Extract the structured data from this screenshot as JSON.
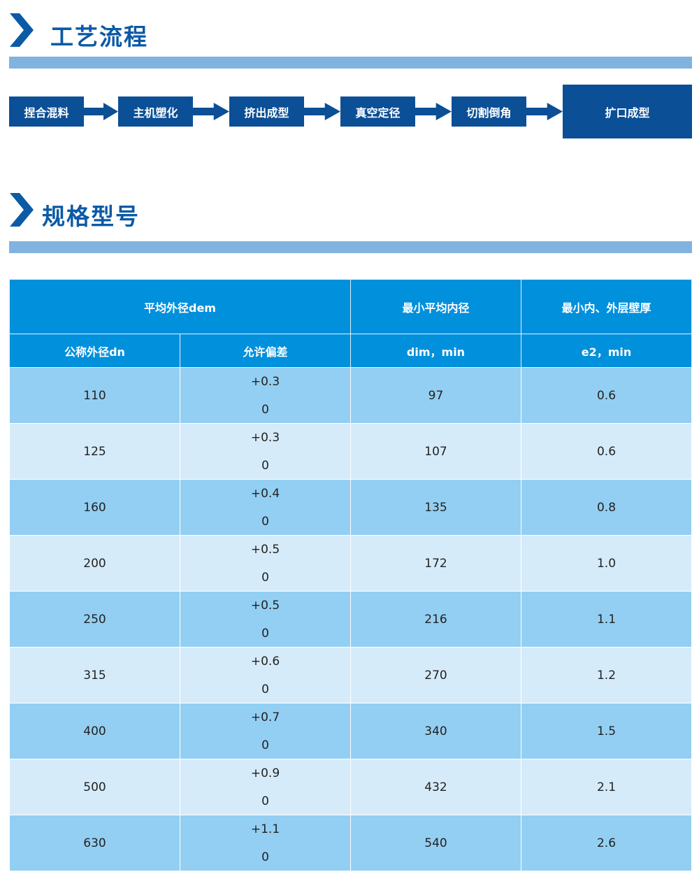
{
  "section1": {
    "title": "工艺流程",
    "steps": [
      "捏合混料",
      "主机塑化",
      "挤出成型",
      "真空定径",
      "切割倒角",
      "扩口成型"
    ]
  },
  "section2": {
    "title": "规格型号"
  },
  "colors": {
    "primary": "#0b4f96",
    "title": "#0b5aa6",
    "divider": "#80b3df",
    "header": "#0090dc",
    "row_odd": "#93cff2",
    "row_even": "#d6ebfa"
  },
  "table": {
    "header": {
      "group1": "平均外径dem",
      "col3": "最小平均内径",
      "col4": "最小内、外层壁厚",
      "sub1": "公称外径dn",
      "sub2": "允许偏差",
      "sub3": "dim，min",
      "sub4": "e2，min"
    },
    "rows": [
      {
        "dn": "110",
        "tol_upper": "+0.3",
        "tol_lower": "0",
        "dim": "97",
        "e2": "0.6"
      },
      {
        "dn": "125",
        "tol_upper": "+0.3",
        "tol_lower": "0",
        "dim": "107",
        "e2": "0.6"
      },
      {
        "dn": "160",
        "tol_upper": "+0.4",
        "tol_lower": "0",
        "dim": "135",
        "e2": "0.8"
      },
      {
        "dn": "200",
        "tol_upper": "+0.5",
        "tol_lower": "0",
        "dim": "172",
        "e2": "1.0"
      },
      {
        "dn": "250",
        "tol_upper": "+0.5",
        "tol_lower": "0",
        "dim": "216",
        "e2": "1.1"
      },
      {
        "dn": "315",
        "tol_upper": "+0.6",
        "tol_lower": "0",
        "dim": "270",
        "e2": "1.2"
      },
      {
        "dn": "400",
        "tol_upper": "+0.7",
        "tol_lower": "0",
        "dim": "340",
        "e2": "1.5"
      },
      {
        "dn": "500",
        "tol_upper": "+0.9",
        "tol_lower": "0",
        "dim": "432",
        "e2": "2.1"
      },
      {
        "dn": "630",
        "tol_upper": "+1.1",
        "tol_lower": "0",
        "dim": "540",
        "e2": "2.6"
      }
    ]
  }
}
